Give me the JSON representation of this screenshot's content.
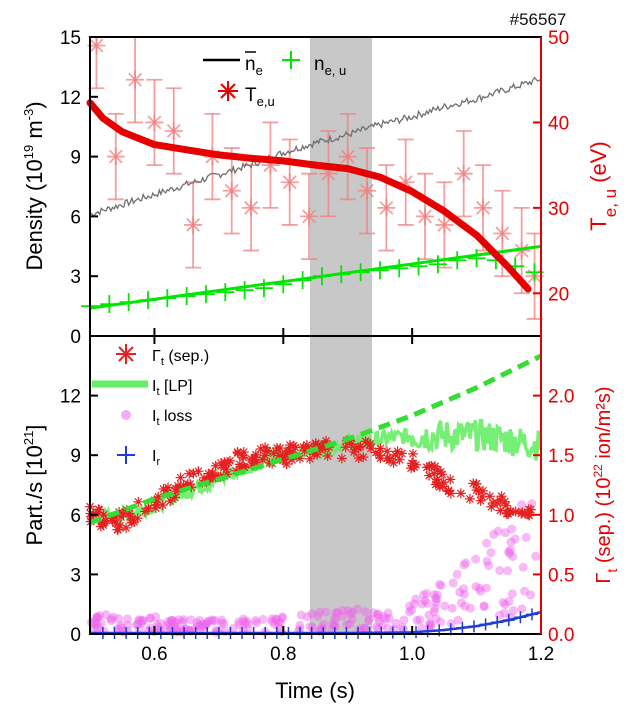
{
  "shot_label": "#56567",
  "colors": {
    "ne_line": "#707070",
    "neu": "#00e600",
    "te_fit": "#e60000",
    "te_points": "#f08080",
    "gamma": "#e62020",
    "lp": "#66ee66",
    "loss": "#ee66ee",
    "ir": "#1f3cd6",
    "axis_red": "#e60000"
  },
  "chart_data": [
    {
      "type": "line",
      "panel": "top",
      "xlim": [
        0.5,
        1.2
      ],
      "ylim_left": [
        0,
        15
      ],
      "ylim_right": [
        15,
        50
      ],
      "yticks_left": [
        "0",
        "3",
        "6",
        "9",
        "12",
        "15"
      ],
      "yticks_right": [
        "20",
        "30",
        "40",
        "50"
      ],
      "ylabel_left": "Density (10",
      "ylabel_left_sup": "19",
      "ylabel_left_tail": " m",
      "ylabel_left_sup2": "-3",
      "ylabel_left_end": ")",
      "ylabel_right": "T",
      "ylabel_right_sub": "e, u",
      "ylabel_right_unit": "(eV)",
      "legend": {
        "ne_bar": "n",
        "ne_bar_sub": "e",
        "neu": "n",
        "neu_sub": "e, u",
        "te": "T",
        "te_sub": "e,u"
      },
      "series": [
        {
          "key": "ne_bar",
          "axis": "left",
          "x": [
            0.5,
            0.55,
            0.6,
            0.65,
            0.7,
            0.75,
            0.8,
            0.85,
            0.9,
            0.95,
            1.0,
            1.05,
            1.1,
            1.15,
            1.2
          ],
          "y": [
            6.1,
            6.6,
            7.1,
            7.6,
            8.1,
            8.6,
            9.2,
            9.7,
            10.1,
            10.6,
            11.0,
            11.5,
            11.9,
            12.4,
            12.9
          ]
        },
        {
          "key": "te_fit",
          "axis": "right",
          "x": [
            0.5,
            0.52,
            0.55,
            0.6,
            0.65,
            0.7,
            0.75,
            0.8,
            0.85,
            0.9,
            0.95,
            1.0,
            1.05,
            1.1,
            1.15,
            1.18
          ],
          "y": [
            42.3,
            40.5,
            38.9,
            37.4,
            36.8,
            36.2,
            35.8,
            35.5,
            35.0,
            34.6,
            33.6,
            31.9,
            29.6,
            26.8,
            23.0,
            20.5
          ]
        },
        {
          "key": "te_points",
          "axis": "right",
          "x": [
            0.51,
            0.54,
            0.57,
            0.6,
            0.63,
            0.66,
            0.69,
            0.72,
            0.75,
            0.78,
            0.81,
            0.84,
            0.87,
            0.9,
            0.93,
            0.96,
            0.99,
            1.02,
            1.05,
            1.08,
            1.11,
            1.14,
            1.17,
            1.19
          ],
          "y": [
            49,
            36,
            45,
            40,
            39,
            28,
            36,
            32,
            30,
            35,
            33,
            29,
            34,
            36,
            32,
            30,
            33,
            29,
            28,
            34,
            30,
            27,
            25,
            22
          ],
          "err": [
            5,
            5,
            5,
            5,
            5,
            5,
            5,
            5,
            5,
            5,
            5,
            5,
            5,
            5,
            5,
            5,
            5,
            5,
            5,
            5,
            5,
            5,
            5,
            5
          ]
        },
        {
          "key": "neu",
          "axis": "left",
          "x": [
            0.5,
            0.53,
            0.56,
            0.59,
            0.62,
            0.65,
            0.68,
            0.71,
            0.74,
            0.77,
            0.8,
            0.83,
            0.86,
            0.89,
            0.92,
            0.95,
            0.98,
            1.01,
            1.04,
            1.07,
            1.1,
            1.13,
            1.16,
            1.19
          ],
          "y": [
            1.5,
            1.6,
            1.7,
            1.8,
            1.9,
            2.0,
            2.1,
            2.2,
            2.3,
            2.4,
            2.6,
            2.8,
            3.0,
            3.1,
            3.2,
            3.3,
            3.4,
            3.5,
            3.6,
            3.8,
            3.9,
            3.8,
            3.5,
            3.2
          ]
        },
        {
          "key": "neu_fit",
          "axis": "left",
          "x": [
            0.5,
            1.2
          ],
          "y": [
            1.4,
            4.5
          ]
        }
      ]
    },
    {
      "type": "scatter",
      "panel": "bottom",
      "xlim": [
        0.5,
        1.2
      ],
      "xlabel": "Time (s)",
      "xticks": [
        "0.6",
        "0.8",
        "1.0",
        "1.2"
      ],
      "ylim_left": [
        0,
        15
      ],
      "ylim_right": [
        0,
        2.5
      ],
      "yticks_left": [
        "0",
        "3",
        "6",
        "9",
        "12"
      ],
      "yticks_right": [
        "0.0",
        "0.5",
        "1.0",
        "1.5",
        "2.0"
      ],
      "ylabel_left": "Part./s [10",
      "ylabel_left_sup": "21",
      "ylabel_left_end": "]",
      "ylabel_right": "Γ",
      "ylabel_right_sub": "t",
      "ylabel_right_mid": " (sep.) (10",
      "ylabel_right_sup": "22",
      "ylabel_right_end": " ion/m²s)",
      "legend": {
        "gamma": "Γ",
        "gamma_sub": "t",
        "gamma_tail": " (sep.)",
        "lp": "I",
        "lp_sub": "t",
        "lp_tail": " [LP]",
        "loss": "I",
        "loss_sub": "t",
        "loss_tail": " loss",
        "ir": "I",
        "ir_sub": "r"
      },
      "series": [
        {
          "key": "lp",
          "axis": "left",
          "x": [
            0.5,
            0.52,
            0.55,
            0.6,
            0.65,
            0.7,
            0.75,
            0.8,
            0.85,
            0.9,
            0.95,
            1.0,
            1.05,
            1.1,
            1.15,
            1.18,
            1.2
          ],
          "y": [
            6.0,
            5.8,
            5.9,
            6.5,
            7.2,
            7.8,
            8.5,
            9.0,
            9.3,
            9.6,
            9.8,
            10.0,
            10.0,
            10.0,
            9.8,
            9.6,
            9.5
          ]
        },
        {
          "key": "lp_fit",
          "axis": "left",
          "x": [
            0.5,
            0.6,
            0.7,
            0.8,
            0.9,
            1.0,
            1.1,
            1.2
          ],
          "y": [
            5.6,
            6.8,
            7.8,
            8.8,
            9.8,
            11.0,
            12.4,
            14.0
          ]
        },
        {
          "key": "gamma",
          "axis": "right",
          "x": [
            0.5,
            0.52,
            0.55,
            0.58,
            0.6,
            0.63,
            0.66,
            0.7,
            0.73,
            0.76,
            0.8,
            0.83,
            0.86,
            0.9,
            0.93,
            0.96,
            1.0,
            1.03,
            1.06,
            1.1,
            1.13,
            1.16,
            1.18,
            1.2
          ],
          "y": [
            1.0,
            0.95,
            0.95,
            1.05,
            1.1,
            1.2,
            1.3,
            1.38,
            1.45,
            1.48,
            1.5,
            1.52,
            1.55,
            1.55,
            1.55,
            1.5,
            1.45,
            1.35,
            1.25,
            1.2,
            1.1,
            1.05,
            1.0,
            0.95
          ]
        },
        {
          "key": "loss",
          "axis": "left",
          "x": [
            0.5,
            0.55,
            0.6,
            0.65,
            0.7,
            0.75,
            0.8,
            0.85,
            0.9,
            0.95,
            1.0,
            1.05,
            1.1,
            1.15,
            1.2
          ],
          "y": [
            0.6,
            0.5,
            0.5,
            0.4,
            0.4,
            0.5,
            0.5,
            0.6,
            0.7,
            0.7,
            1.0,
            1.5,
            2.3,
            3.3,
            4.2
          ]
        },
        {
          "key": "ir",
          "axis": "left",
          "x": [
            0.5,
            0.6,
            0.7,
            0.8,
            0.9,
            1.0,
            1.05,
            1.1,
            1.15,
            1.2
          ],
          "y": [
            0.05,
            0.05,
            0.05,
            0.05,
            0.05,
            0.08,
            0.2,
            0.4,
            0.7,
            1.1
          ]
        }
      ]
    }
  ]
}
